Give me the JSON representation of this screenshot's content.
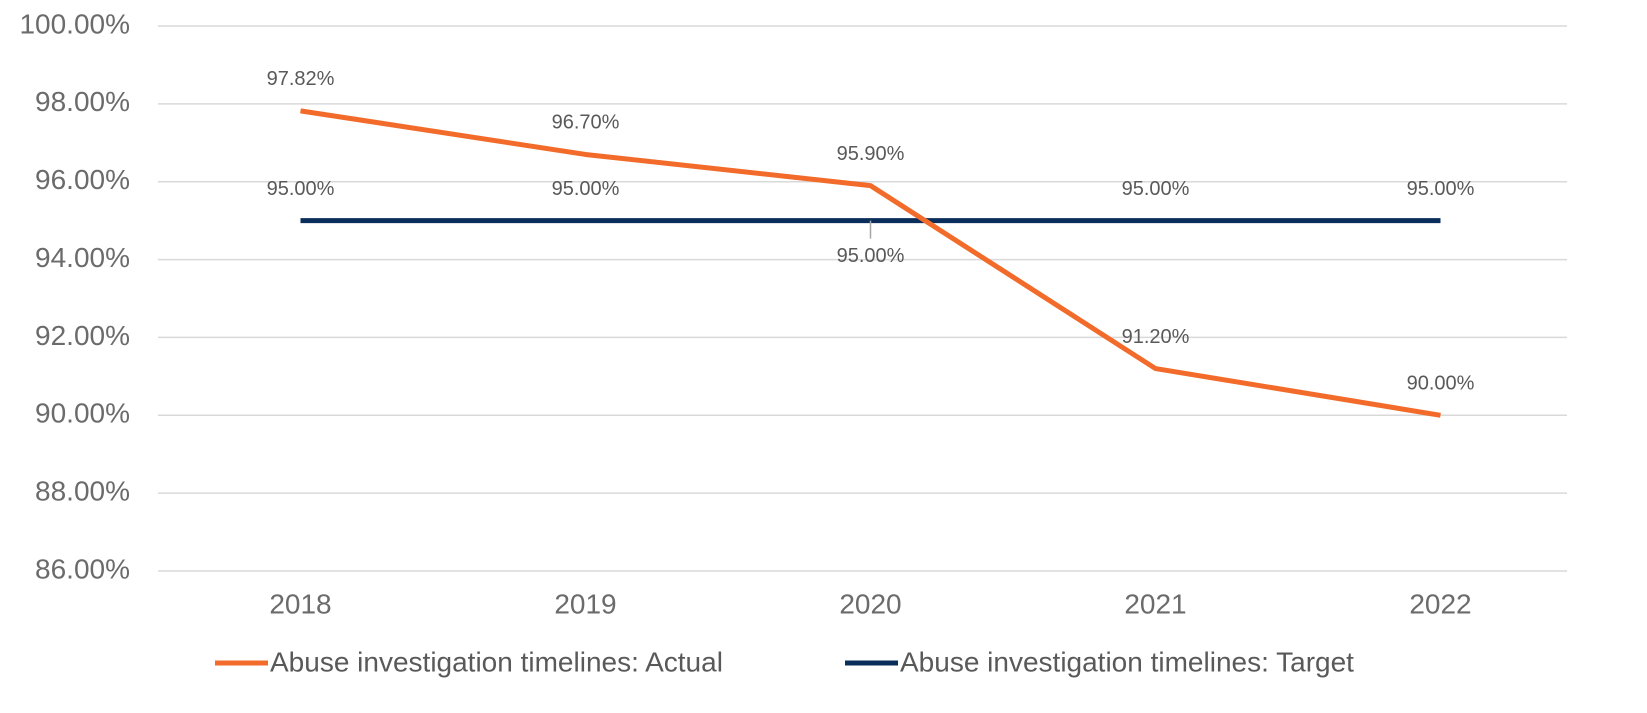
{
  "chart_data": {
    "type": "line",
    "categories": [
      "2018",
      "2019",
      "2020",
      "2021",
      "2022"
    ],
    "series": [
      {
        "name": "Abuse investigation timelines: Actual",
        "color": "#f26b2a",
        "values": [
          97.82,
          96.7,
          95.9,
          91.2,
          90.0
        ],
        "value_labels": [
          "97.82%",
          "96.70%",
          "95.90%",
          "91.20%",
          "90.00%"
        ]
      },
      {
        "name": "Abuse investigation timelines: Target",
        "color": "#0b2d5b",
        "values": [
          95,
          95,
          95,
          95,
          95
        ],
        "value_labels": [
          "95.00%",
          "95.00%",
          "95.00%",
          "95.00%",
          "95.00%"
        ]
      }
    ],
    "ylim": [
      86,
      100
    ],
    "yticks": [
      {
        "value": 86,
        "label": "86.00%"
      },
      {
        "value": 88,
        "label": "88.00%"
      },
      {
        "value": 90,
        "label": "90.00%"
      },
      {
        "value": 92,
        "label": "92.00%"
      },
      {
        "value": 94,
        "label": "94.00%"
      },
      {
        "value": 96,
        "label": "96.00%"
      },
      {
        "value": 98,
        "label": "98.00%"
      },
      {
        "value": 100,
        "label": "100.00%"
      }
    ],
    "grid": true,
    "legend": "bottom"
  }
}
